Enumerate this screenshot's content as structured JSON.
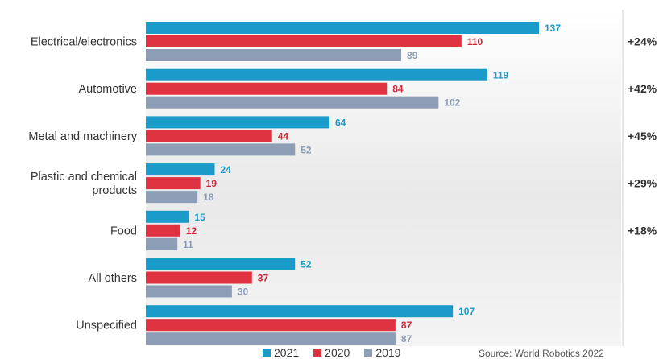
{
  "chart_data": {
    "type": "bar",
    "orientation": "horizontal",
    "categories": [
      "Electrical/electronics",
      "Automotive",
      "Metal and machinery",
      "Plastic and chemical products",
      "Food",
      "All others",
      "Unspecified"
    ],
    "series": [
      {
        "name": "2021",
        "color": "#1a9bc9",
        "label_color": "#1a9bc9",
        "values": [
          137,
          119,
          64,
          24,
          15,
          52,
          107
        ]
      },
      {
        "name": "2020",
        "color": "#e03342",
        "label_color": "#d12535",
        "values": [
          110,
          84,
          44,
          19,
          12,
          37,
          87
        ]
      },
      {
        "name": "2019",
        "color": "#8c9db5",
        "label_color": "#8c9db5",
        "values": [
          89,
          102,
          52,
          18,
          11,
          30,
          87
        ]
      }
    ],
    "growth_labels": [
      "+24%",
      "+42%",
      "+45%",
      "+29%",
      "+18%",
      "",
      ""
    ],
    "xlim": [
      0,
      137
    ],
    "source": "Source: World Robotics 2022",
    "legend_position": "bottom"
  }
}
